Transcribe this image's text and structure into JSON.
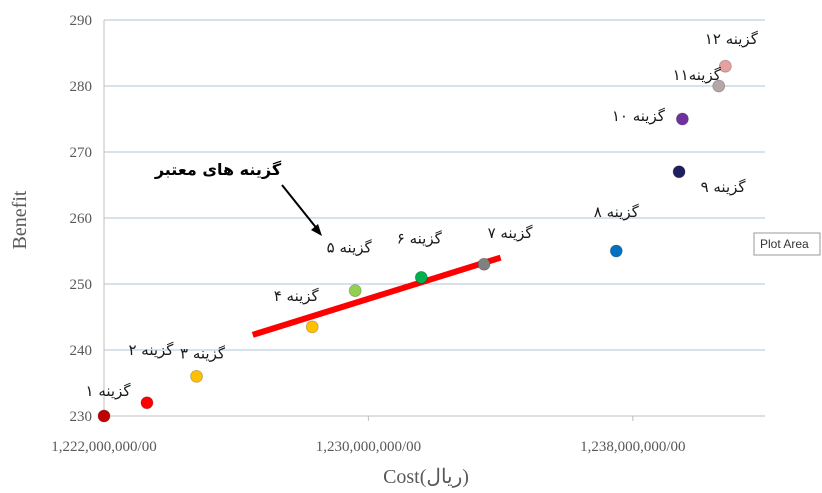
{
  "chart_data": {
    "type": "scatter",
    "xlabel": "Cost(ریال)",
    "ylabel": "Benefit",
    "xlim": [
      1222000000,
      1242000000
    ],
    "ylim": [
      230,
      290
    ],
    "x_ticks": [
      1222000000,
      1230000000,
      1238000000
    ],
    "x_tick_labels": [
      "1,222,000,000/00",
      "1,230,000,000/00",
      "1,238,000,000/00"
    ],
    "y_ticks": [
      230,
      240,
      250,
      260,
      270,
      280,
      290
    ],
    "grid": "horizontal",
    "points": [
      {
        "x": 1222000000,
        "y": 230,
        "label": "گزینه ۱",
        "color": "#c00000"
      },
      {
        "x": 1223300000,
        "y": 232,
        "label": "گزینه ۲",
        "color": "#ff0000"
      },
      {
        "x": 1224800000,
        "y": 236,
        "label": "گزینه ۳",
        "color": "#ffc000"
      },
      {
        "x": 1228300000,
        "y": 243.5,
        "label": "گزینه ۴",
        "color": "#ffc000"
      },
      {
        "x": 1229600000,
        "y": 249,
        "label": "گزینه ۵",
        "color": "#92d050"
      },
      {
        "x": 1231600000,
        "y": 251,
        "label": "گزینه ۶",
        "color": "#00b050"
      },
      {
        "x": 1233500000,
        "y": 253,
        "label": "گزینه ۷",
        "color": "#808080"
      },
      {
        "x": 1237500000,
        "y": 255,
        "label": "گزینه ۸",
        "color": "#0070c0"
      },
      {
        "x": 1239400000,
        "y": 267,
        "label": "گزینه ۹",
        "color": "#1f1f5f"
      },
      {
        "x": 1239500000,
        "y": 275,
        "label": "گزینه ۱۰",
        "color": "#7030a0"
      },
      {
        "x": 1240600000,
        "y": 280,
        "label": "گزینه۱۱",
        "color": "#b4a7a7"
      },
      {
        "x": 1240800000,
        "y": 283,
        "label": "گزینه ۱۲",
        "color": "#e6a0a0"
      }
    ],
    "annotation": {
      "text": "گزینه های معتبر",
      "line": {
        "x1": 1226500000,
        "y1": 242.3,
        "x2": 1234000000,
        "y2": 254,
        "color": "#ff0000"
      }
    },
    "tooltip": "Plot Area"
  }
}
